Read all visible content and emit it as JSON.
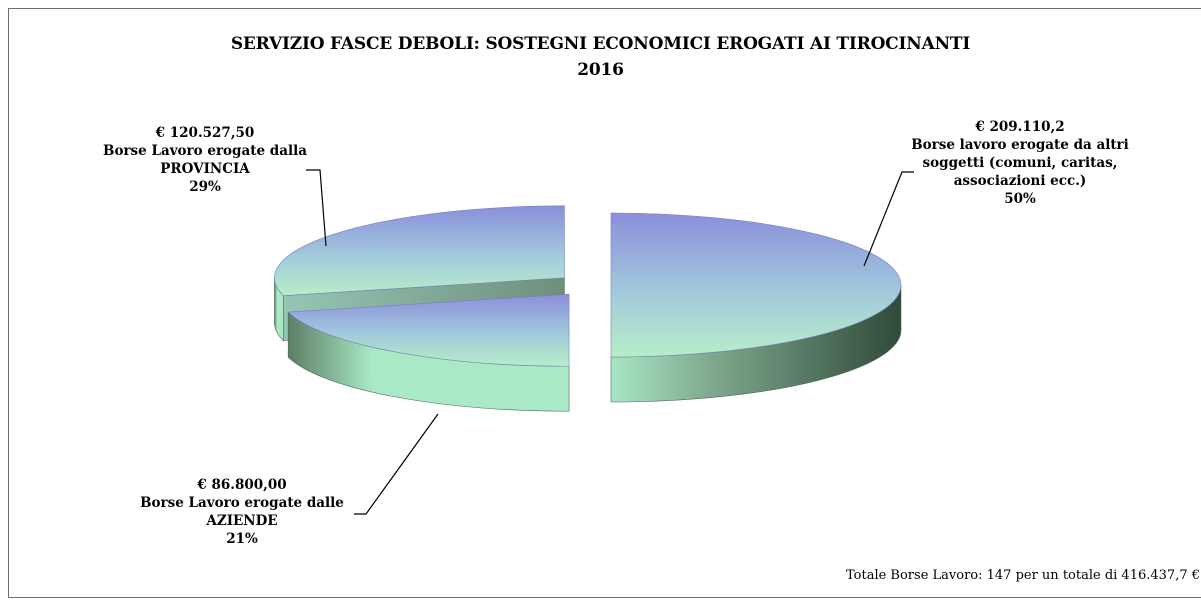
{
  "chart_data": {
    "type": "pie",
    "title": "SERVIZIO FASCE DEBOLI: SOSTEGNI ECONOMICI EROGATI AI TIROCINANTI",
    "subtitle": "2016",
    "slices": [
      {
        "amount": "€ 209.110,2",
        "label_lines": [
          "Borse lavoro erogate da altri",
          "soggetti (comuni, caritas,",
          "associazioni ecc.)"
        ],
        "percent_label": "50%",
        "value": 50
      },
      {
        "amount": "€ 86.800,00",
        "label_lines": [
          "Borse Lavoro erogate dalle",
          "AZIENDE"
        ],
        "percent_label": "21%",
        "value": 21
      },
      {
        "amount": "€ 120.527,50",
        "label_lines": [
          "Borse Lavoro erogate dalla",
          "PROVINCIA"
        ],
        "percent_label": "29%",
        "value": 29
      }
    ],
    "colors": {
      "top_light": "#b4ecc8",
      "top_dark": "#8c92dc",
      "side_light": "#a6e8c2",
      "side_dark": "#35503d"
    }
  },
  "footnote": "Totale Borse Lavoro: 147 per un totale di 416.437,7 €"
}
